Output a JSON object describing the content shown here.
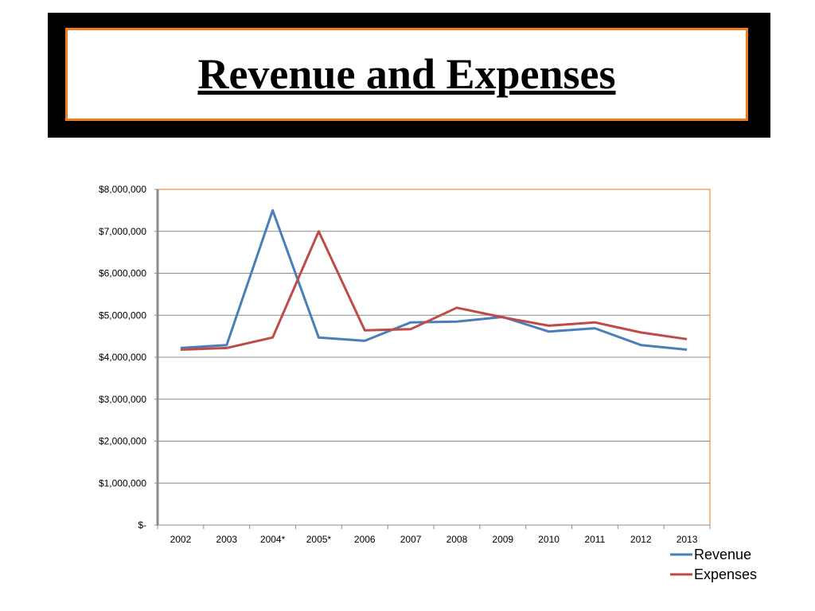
{
  "slide": {
    "title": "Revenue and Expenses"
  },
  "colors": {
    "title_band": "#000000",
    "title_border": "#f07a1c",
    "plot_border": "#f07a1c",
    "revenue": "#4a7ebb",
    "expenses": "#be4b48",
    "gridline": "#8c8c8c"
  },
  "chart_data": {
    "type": "line",
    "title": "",
    "xlabel": "",
    "ylabel": "",
    "categories": [
      "2002",
      "2003",
      "2004*",
      "2005*",
      "2006",
      "2007",
      "2008",
      "2009",
      "2010",
      "2011",
      "2012",
      "2013"
    ],
    "y_tick_labels": [
      "$-",
      "$1,000,000",
      "$2,000,000",
      "$3,000,000",
      "$4,000,000",
      "$5,000,000",
      "$6,000,000",
      "$7,000,000",
      "$8,000,000"
    ],
    "ylim": [
      0,
      8000000
    ],
    "y_step": 1000000,
    "grid": true,
    "legend_position": "bottom-right",
    "series": [
      {
        "name": "Revenue",
        "color": "#4a7ebb",
        "values": [
          4220000,
          4290000,
          7500000,
          4470000,
          4390000,
          4830000,
          4850000,
          4960000,
          4610000,
          4690000,
          4290000,
          4180000
        ]
      },
      {
        "name": "Expenses",
        "color": "#be4b48",
        "values": [
          4180000,
          4220000,
          4470000,
          7000000,
          4640000,
          4670000,
          5180000,
          4950000,
          4750000,
          4830000,
          4590000,
          4430000
        ]
      }
    ]
  }
}
